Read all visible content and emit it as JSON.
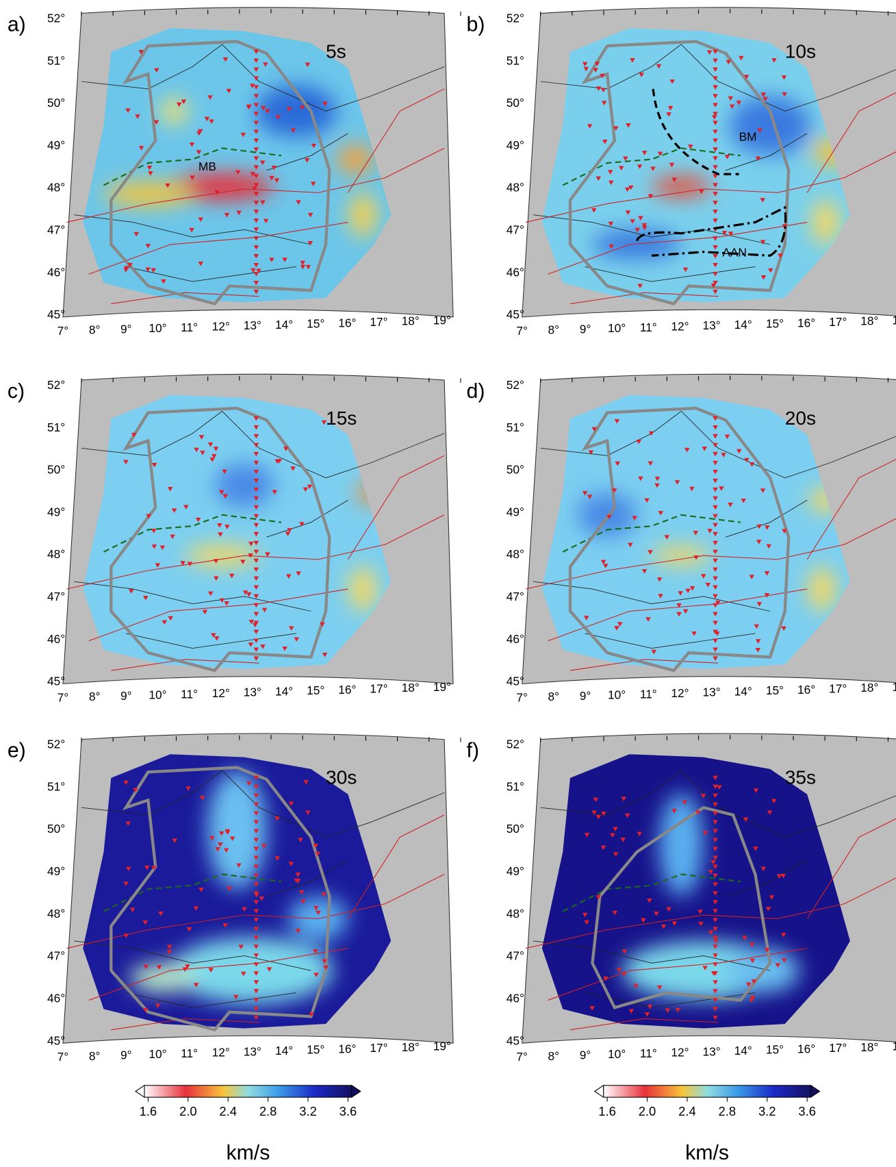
{
  "panels": [
    {
      "label": "a)",
      "period": "5s",
      "annotations": [
        "MB"
      ]
    },
    {
      "label": "b)",
      "period": "10s",
      "annotations": [
        "BM",
        "AAN"
      ]
    },
    {
      "label": "c)",
      "period": "15s",
      "annotations": []
    },
    {
      "label": "d)",
      "period": "20s",
      "annotations": []
    },
    {
      "label": "e)",
      "period": "30s",
      "annotations": []
    },
    {
      "label": "f)",
      "period": "35s",
      "annotations": []
    }
  ],
  "lat_labels": [
    "45°",
    "46°",
    "47°",
    "48°",
    "49°",
    "50°",
    "51°",
    "52°"
  ],
  "lon_labels": [
    "7°",
    "8°",
    "9°",
    "10°",
    "11°",
    "12°",
    "13°",
    "14°",
    "15°",
    "16°",
    "17°",
    "18°",
    "19°"
  ],
  "colorbars": [
    {
      "ticks": [
        "1.6",
        "2.0",
        "2.4",
        "2.8",
        "3.2",
        "3.6"
      ],
      "unit": "km/s"
    },
    {
      "ticks": [
        "1.6",
        "2.0",
        "2.4",
        "2.8",
        "3.2",
        "3.6"
      ],
      "unit": "km/s"
    }
  ]
}
